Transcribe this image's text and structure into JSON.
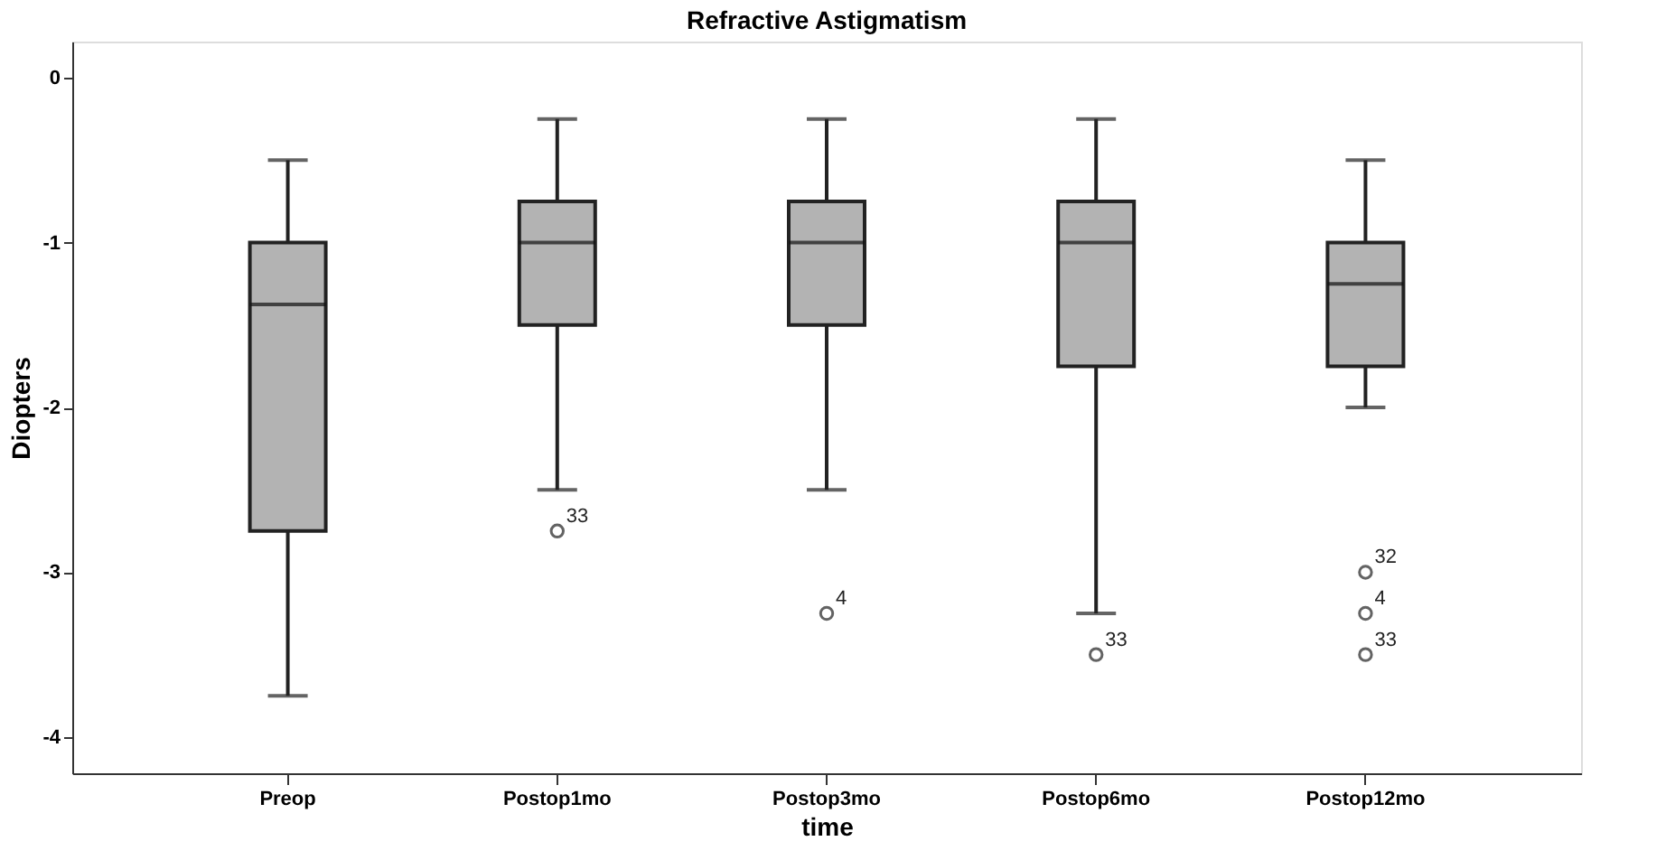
{
  "chart_data": {
    "type": "box",
    "title": "Refractive Astigmatism",
    "xlabel": "time",
    "ylabel": "Diopters",
    "categories": [
      "Preop",
      "Postop1mo",
      "Postop3mo",
      "Postop6mo",
      "Postop12mo"
    ],
    "series": [
      {
        "color": "#b3b3b3",
        "boxes": [
          {
            "low": -3.75,
            "q1": -2.75,
            "median": -1.375,
            "q3": -1,
            "high": -0.5
          },
          {
            "low": -2.5,
            "q1": -1.5,
            "median": -1,
            "q3": -0.75,
            "high": -0.25,
            "outliers": [
              -2.75
            ]
          },
          {
            "low": -2.5,
            "q1": -1.5,
            "median": -1,
            "q3": -0.75,
            "high": -0.25,
            "outliers": [
              -3.25
            ]
          },
          {
            "low": -3.25,
            "q1": -1.75,
            "median": -1,
            "q3": -0.75,
            "high": -0.25,
            "outliers": [
              -3.5
            ]
          },
          {
            "low": -2,
            "q1": -1.75,
            "median": -1.25,
            "q3": -1,
            "high": -0.5,
            "outliers": [
              -3,
              -3.25,
              -3.5
            ]
          }
        ]
      }
    ],
    "ylim": [
      -4.22,
      0.22
    ],
    "yticks": [
      0,
      -1,
      -2,
      -3,
      -4
    ],
    "annotations": [
      "33",
      "4",
      "33",
      "32",
      "4",
      "33"
    ]
  }
}
